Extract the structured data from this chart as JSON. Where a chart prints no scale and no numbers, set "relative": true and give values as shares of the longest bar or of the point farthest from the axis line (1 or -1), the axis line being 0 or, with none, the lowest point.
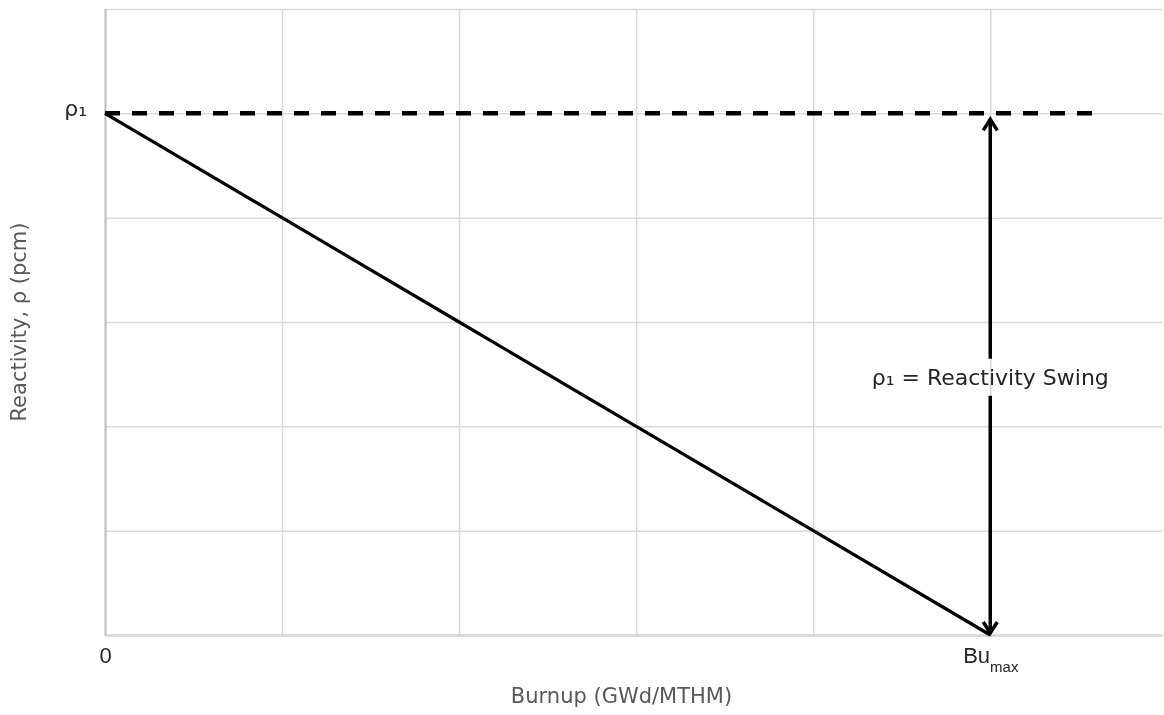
{
  "chart_data": {
    "type": "line",
    "relative": true,
    "xlabel": "Burnup (GWd/MTHM)",
    "ylabel": "Reactivity, ρ (pcm)",
    "categories": [
      "0",
      null,
      null,
      null,
      null,
      "Bu$_{max}$"
    ],
    "series": [
      {
        "values": [
          1,
          0.8,
          0.6,
          0.4,
          0.2,
          0
        ],
        "color": "#000000"
      }
    ],
    "ref_lines": [
      {
        "axis": "y",
        "value": 1,
        "label": "ρ₁",
        "color": "#000000",
        "line_style": "dashed"
      }
    ],
    "grid": true,
    "annotations": [
      "ρ₁ = Reactivity Swing"
    ]
  }
}
